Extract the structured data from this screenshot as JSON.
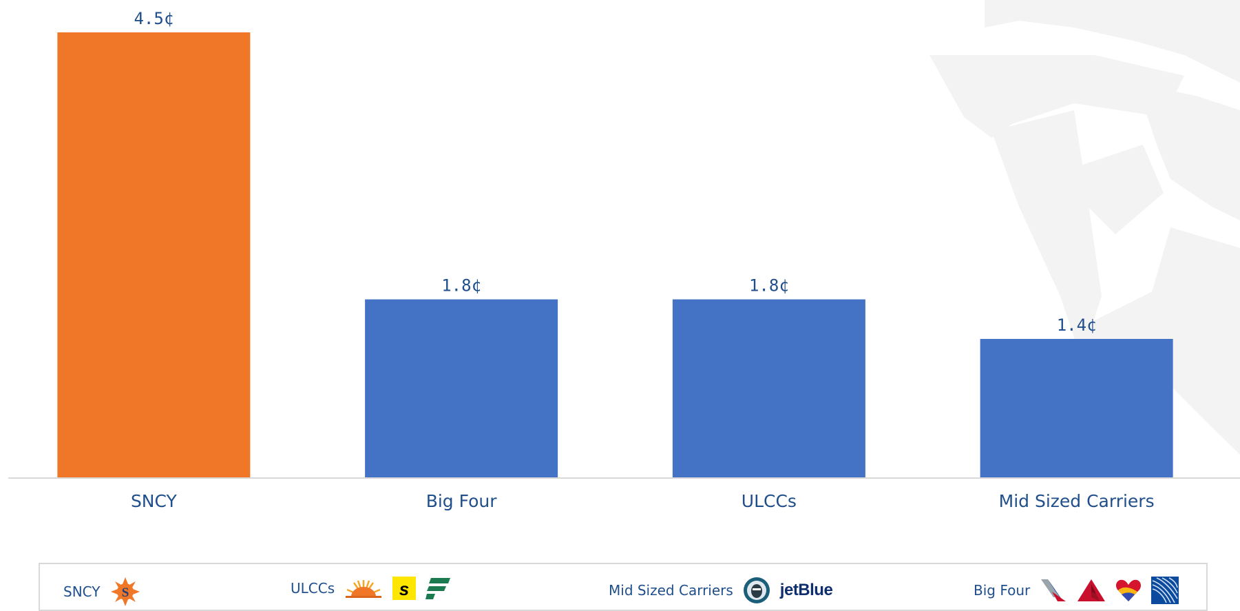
{
  "chart_data": {
    "type": "bar",
    "categories": [
      "SNCY",
      "Big Four",
      "ULCCs",
      "Mid Sized Carriers"
    ],
    "values": [
      4.5,
      1.8,
      1.8,
      1.4
    ],
    "value_labels": [
      "4.5¢",
      "1.8¢",
      "1.8¢",
      "1.4¢"
    ],
    "title": "",
    "xlabel": "",
    "ylabel": "",
    "ylim": [
      0,
      4.5
    ],
    "grid": false,
    "legend": "none",
    "colors": {
      "highlight": "#F07727",
      "default": "#4472C4",
      "axis": "#d9d9d9",
      "text": "#1f4e8c"
    },
    "highlight_category": "SNCY"
  },
  "legend_box": {
    "groups": [
      {
        "label": "SNCY",
        "logos": [
          "sun-country-logo"
        ]
      },
      {
        "label": "ULCCs",
        "logos": [
          "frontier-sun-logo",
          "spirit-logo",
          "frontier-logo"
        ]
      },
      {
        "label": "Mid Sized Carriers",
        "logos": [
          "alaska-logo",
          "jetblue-logo"
        ],
        "brand_text": "jetBlue"
      },
      {
        "label": "Big Four",
        "logos": [
          "american-logo",
          "delta-logo",
          "southwest-logo",
          "united-logo"
        ]
      }
    ]
  }
}
